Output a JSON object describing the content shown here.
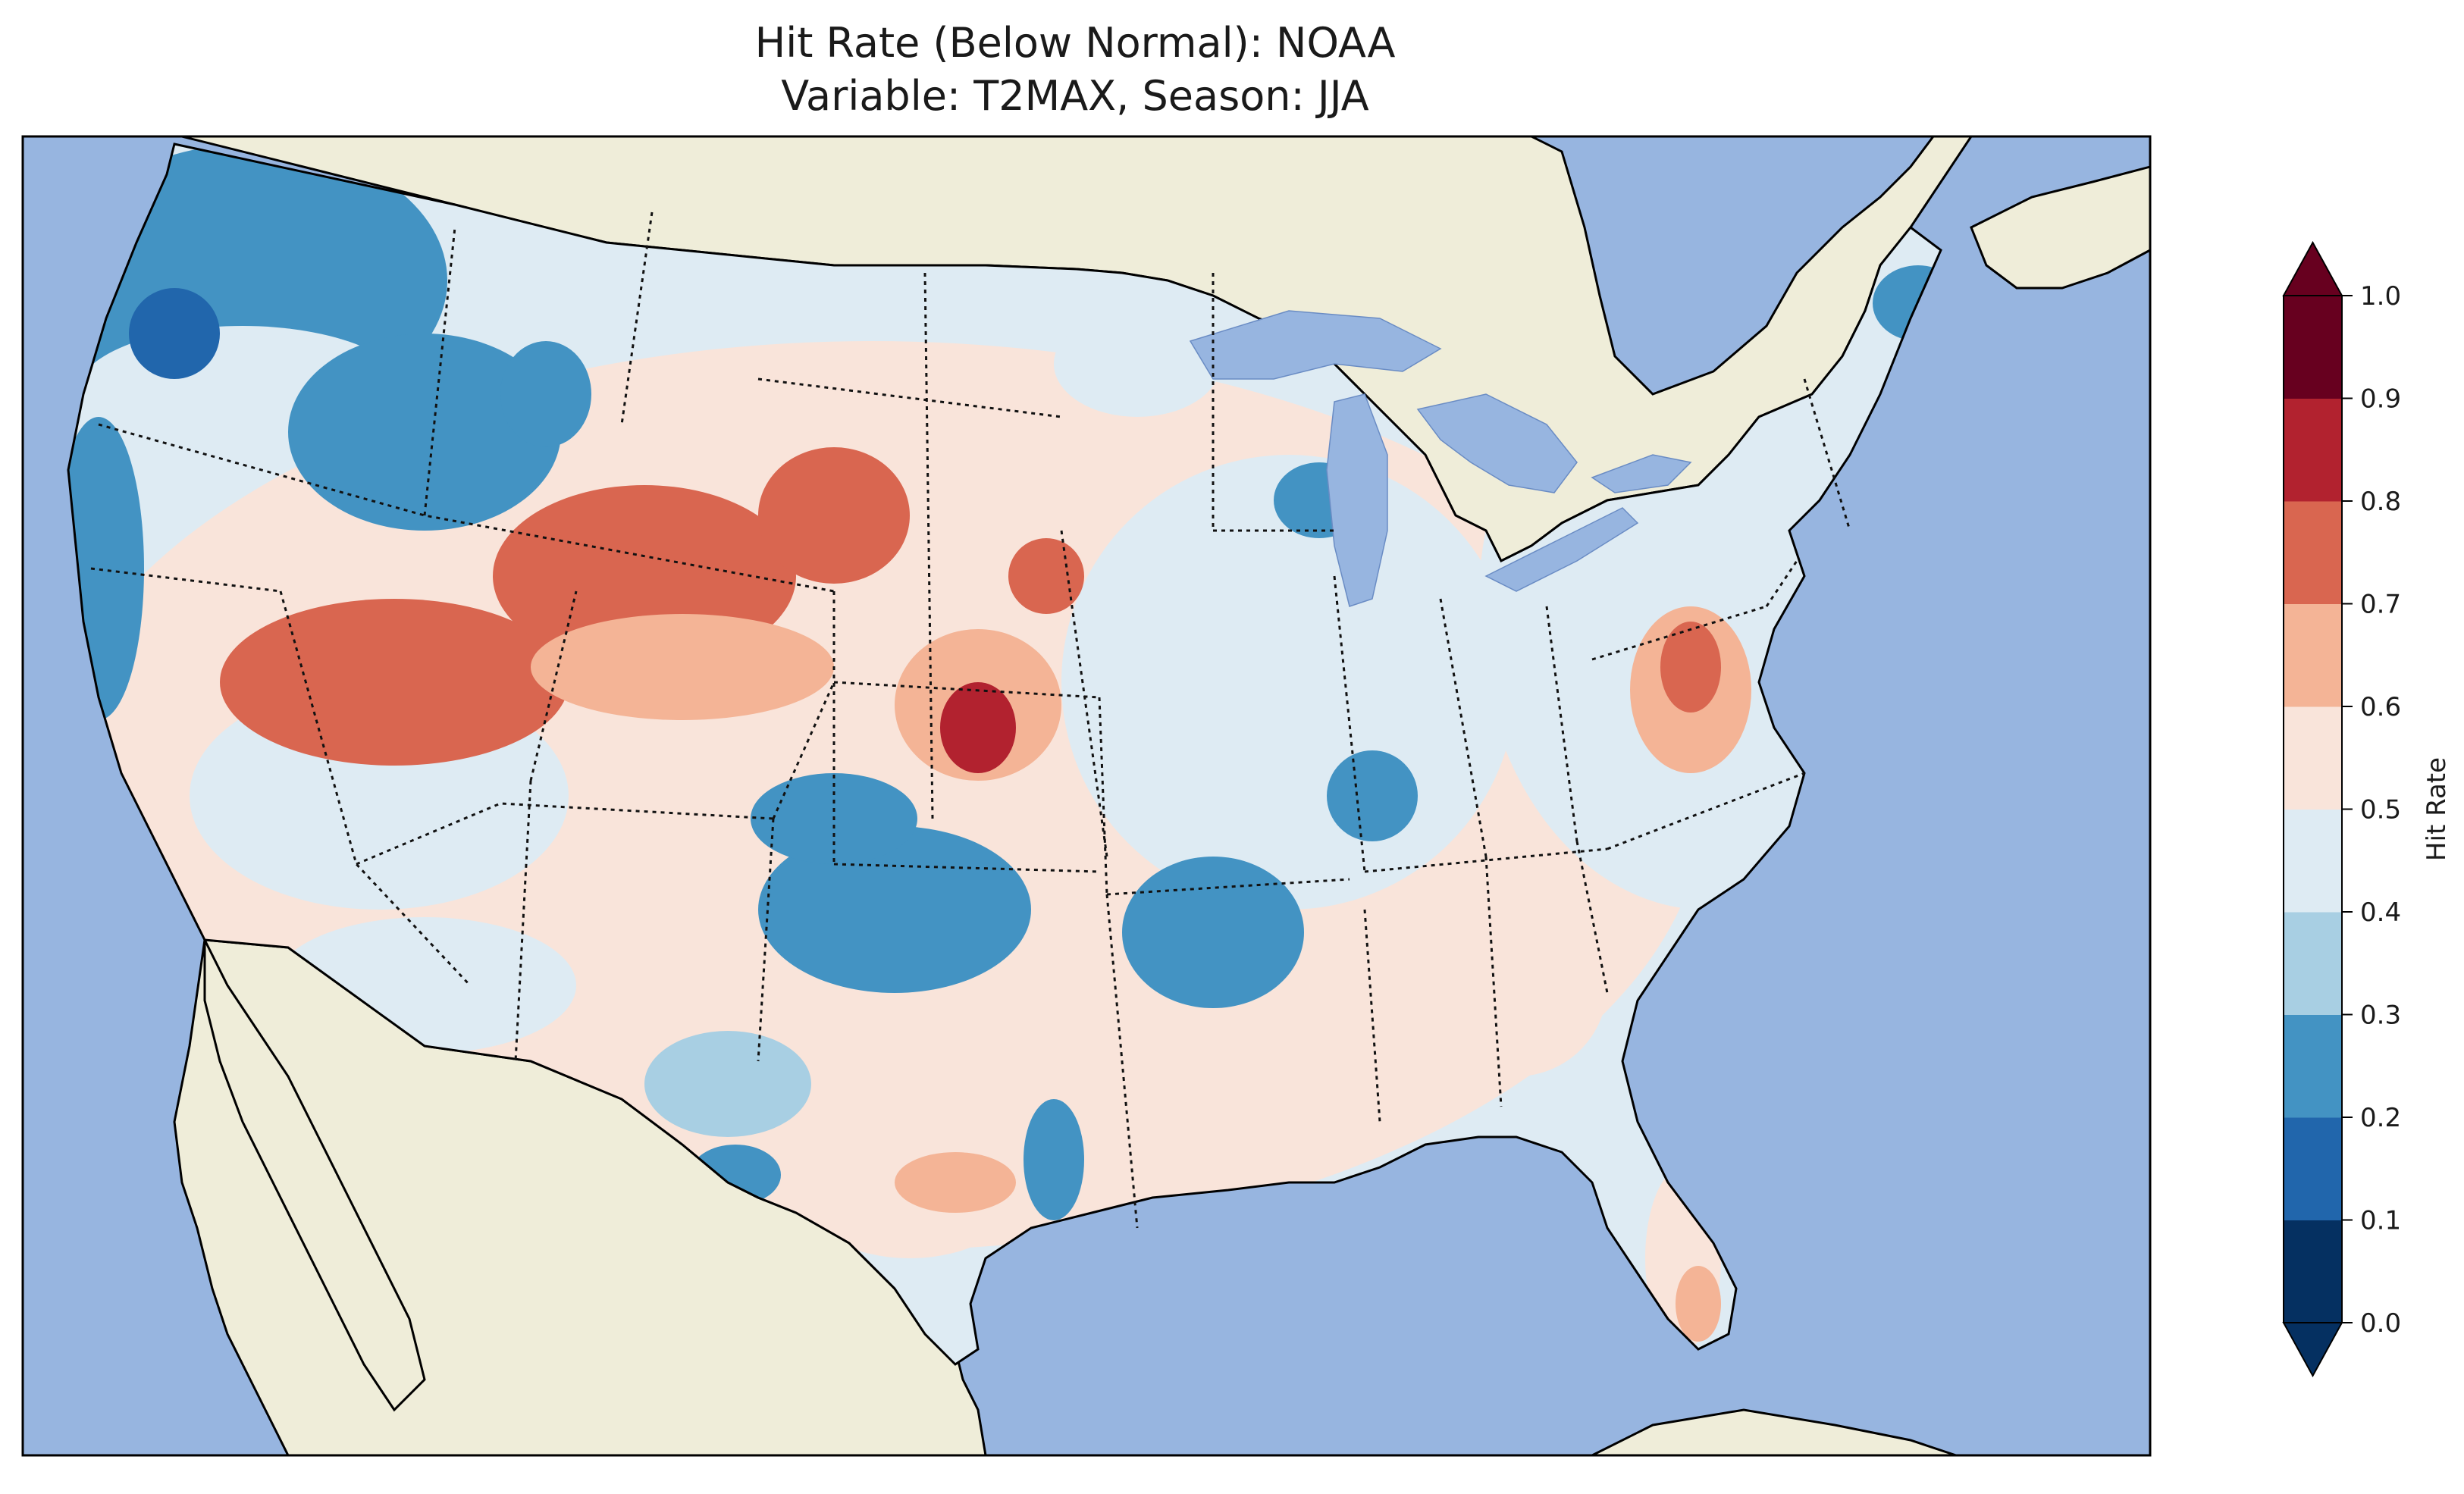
{
  "title": {
    "line1": "Hit Rate (Below Normal): NOAA",
    "line2": "Variable: T2MAX, Season: JJA"
  },
  "colorbar": {
    "label": "Hit Rate",
    "ticks": [
      "0.0",
      "0.1",
      "0.2",
      "0.3",
      "0.4",
      "0.5",
      "0.6",
      "0.7",
      "0.8",
      "0.9",
      "1.0"
    ],
    "bins": [
      {
        "range": [
          0.0,
          0.1
        ],
        "color": "#053061"
      },
      {
        "range": [
          0.1,
          0.2
        ],
        "color": "#2166ac"
      },
      {
        "range": [
          0.2,
          0.3
        ],
        "color": "#4393c3"
      },
      {
        "range": [
          0.3,
          0.4
        ],
        "color": "#a8cfe3"
      },
      {
        "range": [
          0.4,
          0.5
        ],
        "color": "#deebf3"
      },
      {
        "range": [
          0.5,
          0.6
        ],
        "color": "#f9e4da"
      },
      {
        "range": [
          0.6,
          0.7
        ],
        "color": "#f4b496"
      },
      {
        "range": [
          0.7,
          0.8
        ],
        "color": "#d96650"
      },
      {
        "range": [
          0.8,
          0.9
        ],
        "color": "#b2222f"
      },
      {
        "range": [
          0.9,
          1.0
        ],
        "color": "#67001f"
      }
    ],
    "extend": "both"
  },
  "map": {
    "region": "Contiguous United States",
    "ocean_color": "#97b5e0",
    "land_color": "#efedd9",
    "borders": "state boundaries dotted, coastlines solid"
  },
  "regions": [
    {
      "name": "pacific-northwest-coast",
      "value": 0.2
    },
    {
      "name": "oregon-coast",
      "value": 0.15
    },
    {
      "name": "idaho-montana-west",
      "value": 0.25
    },
    {
      "name": "nevada-utah-north",
      "value": 0.75
    },
    {
      "name": "wyoming-central",
      "value": 0.75
    },
    {
      "name": "south-dakota-west",
      "value": 0.75
    },
    {
      "name": "kansas-central",
      "value": 0.85
    },
    {
      "name": "oklahoma",
      "value": 0.25
    },
    {
      "name": "arkansas",
      "value": 0.25
    },
    {
      "name": "virginia-west",
      "value": 0.75
    },
    {
      "name": "southwest",
      "value": 0.55
    },
    {
      "name": "southeast",
      "value": 0.55
    },
    {
      "name": "northeast",
      "value": 0.45
    }
  ]
}
